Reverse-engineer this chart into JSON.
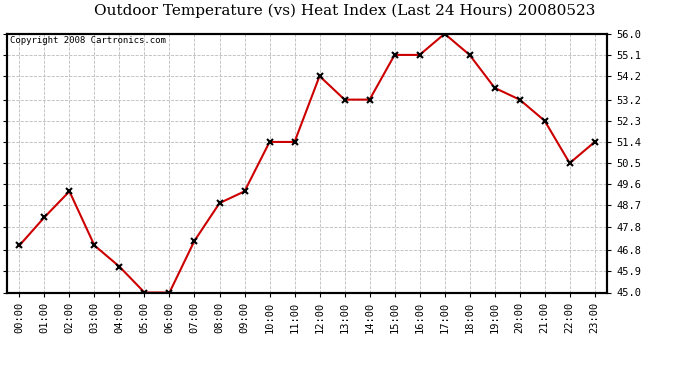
{
  "title": "Outdoor Temperature (vs) Heat Index (Last 24 Hours) 20080523",
  "copyright": "Copyright 2008 Cartronics.com",
  "x_labels": [
    "00:00",
    "01:00",
    "02:00",
    "03:00",
    "04:00",
    "05:00",
    "06:00",
    "07:00",
    "08:00",
    "09:00",
    "10:00",
    "11:00",
    "12:00",
    "13:00",
    "14:00",
    "15:00",
    "16:00",
    "17:00",
    "18:00",
    "19:00",
    "20:00",
    "21:00",
    "22:00",
    "23:00"
  ],
  "y_values": [
    47.0,
    48.2,
    49.3,
    47.0,
    46.1,
    45.0,
    45.0,
    47.2,
    48.8,
    49.3,
    51.4,
    51.4,
    54.2,
    53.2,
    53.2,
    55.1,
    55.1,
    56.0,
    55.1,
    53.7,
    53.2,
    52.3,
    50.5,
    51.4
  ],
  "line_color": "#cc0000",
  "marker_color": "#000000",
  "marker_size": 5,
  "y_min": 45.0,
  "y_max": 56.0,
  "y_ticks": [
    45.0,
    45.9,
    46.8,
    47.8,
    48.7,
    49.6,
    50.5,
    51.4,
    52.3,
    53.2,
    54.2,
    55.1,
    56.0
  ],
  "grid_color": "#bbbbbb",
  "bg_color": "#ffffff",
  "title_fontsize": 11,
  "copyright_fontsize": 6.5,
  "tick_fontsize": 7.5
}
